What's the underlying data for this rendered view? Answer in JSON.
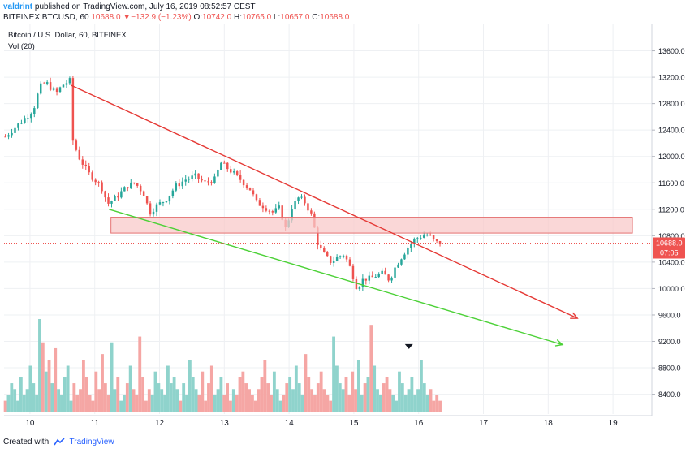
{
  "header": {
    "author": "valdrint",
    "published": "published on TradingView.com, July 16, 2019 08:52:57 CEST",
    "symbol": "BITFINEX:BTCUSD, 60",
    "last": "10688.0",
    "change": "▼−132.9 (−1.23%)",
    "o_label": "O:",
    "o": "10742.0",
    "h_label": "H:",
    "h": "10765.0",
    "l_label": "L:",
    "l": "10657.0",
    "c_label": "C:",
    "c": "10688.0"
  },
  "chart_data": {
    "type": "candlestick",
    "title": "Bitcoin / U.S. Dollar, 60, BITFINEX",
    "volume_label": "Vol (20)",
    "ylim": [
      8100,
      14000
    ],
    "y_ticks": [
      8400,
      8800,
      9200,
      9600,
      10000,
      10400,
      10800,
      11200,
      11600,
      12000,
      12400,
      12800,
      13200,
      13600
    ],
    "y_tick_labels": [
      "8400.0",
      "8800.0",
      "9200.0",
      "9600.0",
      "10000.0",
      "10400.0",
      "10800.0",
      "11200.0",
      "11600.0",
      "12000.0",
      "12400.0",
      "12800.0",
      "13200.0",
      "13600.0"
    ],
    "x_range": [
      9.6,
      19.6
    ],
    "x_ticks": [
      10,
      11,
      12,
      13,
      14,
      15,
      16,
      17,
      18,
      19
    ],
    "x_tick_labels": [
      "10",
      "11",
      "12",
      "13",
      "14",
      "15",
      "16",
      "17",
      "18",
      "19"
    ],
    "current_price": 10688.0,
    "current_price_label": "10688.0",
    "countdown": "07:05",
    "path": [
      [
        9.62,
        12300
      ],
      [
        9.75,
        12420
      ],
      [
        9.9,
        12560
      ],
      [
        10.05,
        12700
      ],
      [
        10.15,
        13050
      ],
      [
        10.25,
        13120
      ],
      [
        10.4,
        12950
      ],
      [
        10.5,
        13080
      ],
      [
        10.62,
        13150
      ],
      [
        10.66,
        12250
      ],
      [
        10.75,
        12000
      ],
      [
        10.9,
        11750
      ],
      [
        11.0,
        11650
      ],
      [
        11.1,
        11550
      ],
      [
        11.2,
        11280
      ],
      [
        11.35,
        11400
      ],
      [
        11.5,
        11550
      ],
      [
        11.62,
        11600
      ],
      [
        11.75,
        11450
      ],
      [
        11.85,
        11150
      ],
      [
        11.95,
        11250
      ],
      [
        12.1,
        11350
      ],
      [
        12.25,
        11550
      ],
      [
        12.4,
        11650
      ],
      [
        12.55,
        11700
      ],
      [
        12.7,
        11600
      ],
      [
        12.85,
        11650
      ],
      [
        12.95,
        11900
      ],
      [
        13.1,
        11780
      ],
      [
        13.25,
        11650
      ],
      [
        13.4,
        11500
      ],
      [
        13.5,
        11300
      ],
      [
        13.6,
        11250
      ],
      [
        13.75,
        11150
      ],
      [
        13.85,
        11220
      ],
      [
        13.95,
        10900
      ],
      [
        14.05,
        11250
      ],
      [
        14.15,
        11380
      ],
      [
        14.25,
        11300
      ],
      [
        14.35,
        11100
      ],
      [
        14.45,
        10650
      ],
      [
        14.55,
        10500
      ],
      [
        14.65,
        10400
      ],
      [
        14.75,
        10480
      ],
      [
        14.85,
        10520
      ],
      [
        14.95,
        10300
      ],
      [
        15.05,
        10000
      ],
      [
        15.15,
        10150
      ],
      [
        15.25,
        10150
      ],
      [
        15.35,
        10200
      ],
      [
        15.45,
        10230
      ],
      [
        15.55,
        10130
      ],
      [
        15.65,
        10350
      ],
      [
        15.75,
        10500
      ],
      [
        15.85,
        10650
      ],
      [
        15.95,
        10750
      ],
      [
        16.05,
        10800
      ],
      [
        16.15,
        10820
      ],
      [
        16.25,
        10700
      ],
      [
        16.33,
        10688
      ]
    ],
    "volume_max": 16,
    "volume_ticks": [
      2,
      3,
      5,
      4,
      2,
      6,
      3,
      4,
      8,
      5,
      3,
      16,
      12,
      7,
      9,
      5,
      11,
      4,
      3,
      6,
      8,
      2,
      5,
      3,
      4,
      9,
      6,
      3,
      2,
      7,
      4,
      10,
      5,
      3,
      12,
      4,
      6,
      2,
      3,
      5,
      8,
      4,
      3,
      13,
      6,
      2,
      4,
      3,
      7,
      5,
      4,
      3,
      8,
      5,
      6,
      4,
      2,
      5,
      3,
      9,
      6,
      4,
      3,
      7,
      2,
      5,
      8,
      3,
      4,
      6,
      3,
      5,
      2,
      4,
      3,
      6,
      7,
      5,
      4,
      3,
      2,
      4,
      6,
      9,
      5,
      3,
      7,
      4,
      2,
      3,
      5,
      6,
      4,
      8,
      5,
      3,
      10,
      6,
      4,
      3,
      5,
      7,
      4,
      3,
      2,
      13,
      8,
      5,
      4,
      6,
      3,
      7,
      4,
      9,
      3,
      5,
      6,
      15,
      8,
      4,
      3,
      5,
      6,
      4,
      3,
      2,
      7,
      5,
      3,
      4,
      6,
      3,
      4,
      9,
      5,
      3,
      4,
      2,
      3,
      2
    ],
    "red_channel_line": {
      "from": [
        10.63,
        13080
      ],
      "to": [
        18.45,
        9550
      ],
      "color": "#e53935",
      "label": "descending resistance"
    },
    "green_channel_line": {
      "from": [
        11.22,
        11200
      ],
      "to": [
        18.22,
        9150
      ],
      "color": "#4cd137",
      "label": "descending support"
    },
    "resistance_zone": {
      "x": [
        11.25,
        19.3
      ],
      "y": [
        10840,
        11080
      ],
      "color": "#f8c9c9"
    },
    "down_marker": {
      "x": 15.85,
      "label": "down arrow"
    }
  },
  "footer": {
    "created_with": "Created with",
    "brand": "TradingView"
  },
  "colors": {
    "up": "#26a69a",
    "down": "#ef5350",
    "vol_up": "#8fd3cc",
    "vol_down": "#f5a6a4",
    "grid": "#eef0f3",
    "axis_text": "#131722",
    "price_tag": "#ef5350"
  }
}
